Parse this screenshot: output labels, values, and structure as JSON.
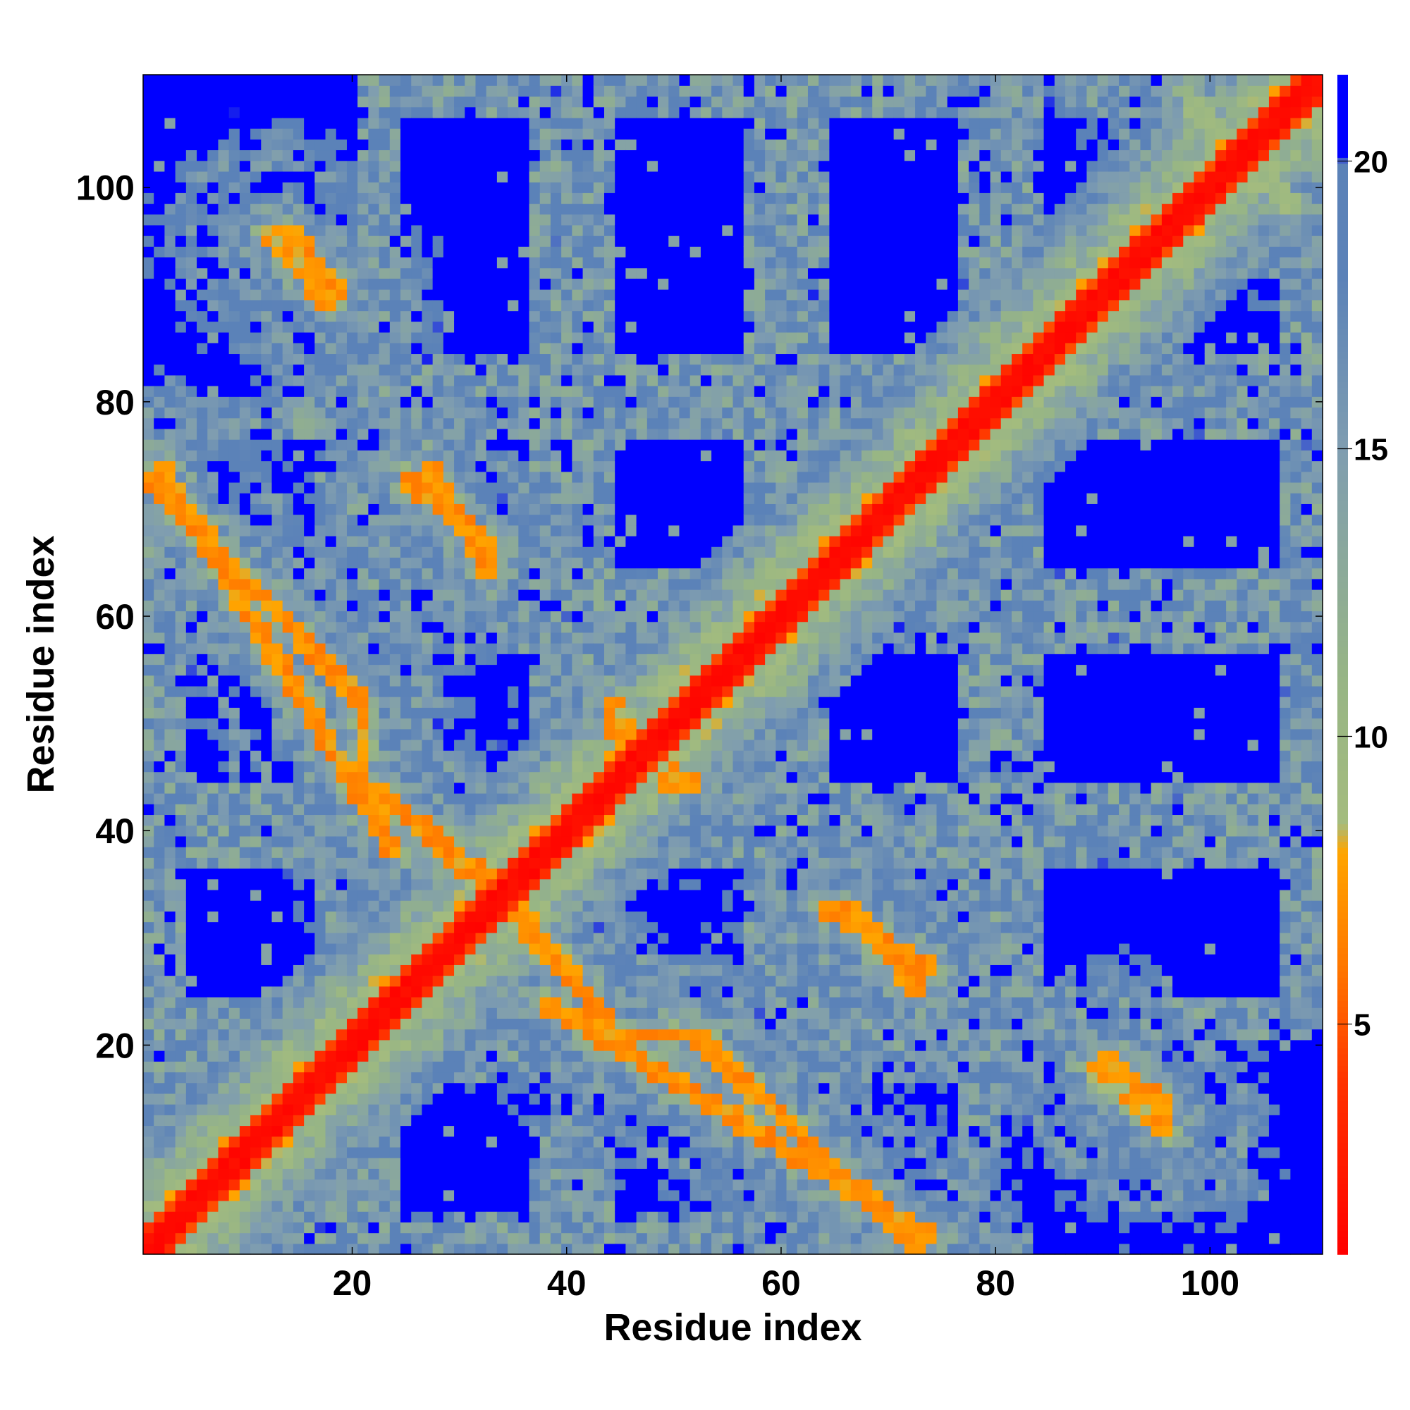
{
  "chart_data": {
    "type": "heatmap",
    "title": "",
    "xlabel": "Residue index",
    "ylabel": "Residue index",
    "n_residues": 110,
    "xlim": [
      0.5,
      110.5
    ],
    "ylim": [
      0.5,
      110.5
    ],
    "x_ticks": [
      20,
      40,
      60,
      80,
      100
    ],
    "y_ticks": [
      20,
      40,
      60,
      80,
      100
    ],
    "colorbar": {
      "range": [
        1,
        21.5
      ],
      "ticks": [
        5,
        10,
        15,
        20
      ],
      "stops": [
        {
          "value": 1,
          "color": "#ff0000"
        },
        {
          "value": 4,
          "color": "#ff3300"
        },
        {
          "value": 6,
          "color": "#ff7700"
        },
        {
          "value": 8,
          "color": "#ffa500"
        },
        {
          "value": 8.5,
          "color": "#a4bc7e"
        },
        {
          "value": 11,
          "color": "#97b585"
        },
        {
          "value": 15,
          "color": "#7f9db0"
        },
        {
          "value": 18,
          "color": "#5b82b8"
        },
        {
          "value": 20,
          "color": "#5b82b8"
        },
        {
          "value": 20.05,
          "color": "#0000ff"
        },
        {
          "value": 21.5,
          "color": "#0000ff"
        }
      ]
    },
    "value_description": "Inter-residue distance; diagonal band i=j near 1, anti-diagonal contact bands 5-8, background above 20",
    "diagonal_bands": [
      {
        "offset": 0,
        "width": 2.2,
        "value": 1.5
      }
    ],
    "contact_bands": [
      {
        "from": [
          2,
          74
        ],
        "to": [
          24,
          38
        ],
        "value": 6.5,
        "halo": 6
      },
      {
        "from": [
          22,
          44
        ],
        "to": [
          36,
          32
        ],
        "value": 6.5,
        "halo": 6
      },
      {
        "from": [
          27,
          74
        ],
        "to": [
          33,
          64
        ],
        "value": 6.5,
        "halo": 5
      },
      {
        "from": [
          14,
          96
        ],
        "to": [
          19,
          90
        ],
        "value": 6.5,
        "halo": 6
      },
      {
        "from": [
          36,
          32
        ],
        "to": [
          44,
          22
        ],
        "value": 6.5,
        "halo": 5
      },
      {
        "from": [
          44,
          21
        ],
        "to": [
          53,
          21
        ],
        "value": 6.5,
        "halo": 5
      },
      {
        "from": [
          52,
          21
        ],
        "to": [
          73,
          1
        ],
        "value": 6.5,
        "halo": 6
      },
      {
        "from": [
          66,
          33
        ],
        "to": [
          73,
          25
        ],
        "value": 6.5,
        "halo": 6
      },
      {
        "from": [
          44,
          52
        ],
        "to": [
          50,
          44
        ],
        "value": 7.0,
        "halo": 5
      },
      {
        "from": [
          89,
          18
        ],
        "to": [
          96,
          12
        ],
        "value": 7.0,
        "halo": 7
      },
      {
        "from": [
          101,
          104
        ],
        "to": [
          108,
          98
        ],
        "value": 9.0,
        "halo": 6
      }
    ],
    "far_value": 21
  }
}
